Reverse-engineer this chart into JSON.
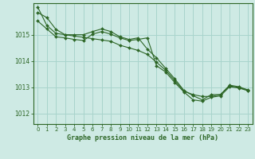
{
  "background_color": "#ceeae4",
  "plot_bg_color": "#ceeae4",
  "grid_color": "#a8d4cc",
  "line_color": "#2d6626",
  "marker_color": "#2d6626",
  "xlabel": "Graphe pression niveau de la mer (hPa)",
  "ylim": [
    1011.6,
    1016.2
  ],
  "xlim": [
    -0.5,
    23.5
  ],
  "yticks": [
    1012,
    1013,
    1014,
    1015
  ],
  "xticks": [
    0,
    1,
    2,
    3,
    4,
    5,
    6,
    7,
    8,
    9,
    10,
    11,
    12,
    13,
    14,
    15,
    16,
    17,
    18,
    19,
    20,
    21,
    22,
    23
  ],
  "series1": [
    1015.85,
    1015.65,
    1015.2,
    1015.0,
    1014.95,
    1014.9,
    1014.85,
    1014.8,
    1014.75,
    1014.6,
    1014.5,
    1014.4,
    1014.25,
    1013.95,
    1013.65,
    1013.25,
    1012.85,
    1012.72,
    1012.65,
    1012.65,
    1012.72,
    1013.05,
    1013.0,
    1012.88
  ],
  "series2": [
    1016.05,
    1015.35,
    1015.05,
    1015.0,
    1015.0,
    1015.0,
    1015.12,
    1015.22,
    1015.12,
    1014.92,
    1014.82,
    1014.88,
    1014.45,
    1014.12,
    1013.72,
    1013.32,
    1012.88,
    1012.68,
    1012.52,
    1012.72,
    1012.72,
    1013.08,
    1013.02,
    1012.9
  ],
  "series3": [
    1015.52,
    1015.22,
    1014.92,
    1014.88,
    1014.82,
    1014.78,
    1015.02,
    1015.12,
    1015.02,
    1014.88,
    1014.78,
    1014.82,
    1014.88,
    1013.82,
    1013.58,
    1013.18,
    1012.82,
    1012.52,
    1012.47,
    1012.62,
    1012.67,
    1013.02,
    1012.97,
    1012.87
  ]
}
